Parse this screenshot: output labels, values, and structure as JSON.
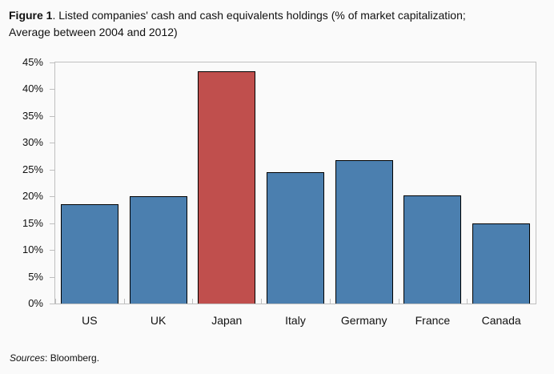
{
  "title": {
    "bold": "Figure 1",
    "line1_rest": ". Listed companies' cash and cash equivalents holdings (% of market capitalization;",
    "line2": "Average between 2004 and 2012)"
  },
  "footer": {
    "sources_label": "Sources",
    "rest": ": Bloomberg."
  },
  "colors": {
    "bar_default": "#4B7FAF",
    "bar_highlight": "#C04F4D",
    "bar_outline": "#000000",
    "axis": "#BFBFBF",
    "background": "#FAFAFA",
    "text": "#111111"
  },
  "chart_data": {
    "type": "bar",
    "title": "Listed companies' cash and cash equivalents holdings (% of market capitalization; Average between 2004 and 2012)",
    "categories": [
      "US",
      "UK",
      "Japan",
      "Italy",
      "Germany",
      "France",
      "Canada"
    ],
    "values": [
      18.5,
      20.1,
      43.3,
      24.5,
      26.8,
      20.2,
      14.9
    ],
    "unit": "% of market capitalization",
    "xlabel": "",
    "ylabel": "",
    "ylim": [
      0,
      45
    ],
    "ytick_step": 5,
    "ytick_labels": [
      "0%",
      "5%",
      "10%",
      "15%",
      "20%",
      "25%",
      "30%",
      "35%",
      "40%",
      "45%"
    ],
    "highlight_index": 2,
    "highlight_category": "Japan",
    "grid": false,
    "legend": false,
    "source": "Bloomberg"
  }
}
